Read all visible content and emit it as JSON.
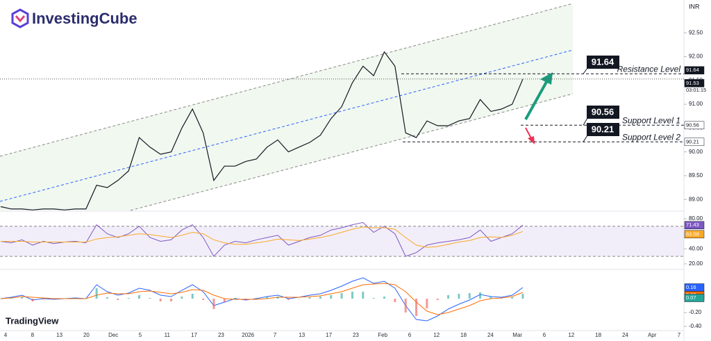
{
  "brand": "InvestingCube",
  "watermark": "TradingView",
  "chart_data": [
    {
      "type": "line",
      "currency": "INR",
      "color": "#131722",
      "countdown": "03:01:15",
      "values": [
        88.85,
        88.8,
        88.8,
        88.78,
        88.8,
        88.8,
        88.78,
        88.8,
        88.8,
        89.3,
        89.25,
        89.4,
        89.6,
        90.3,
        90.1,
        89.95,
        90.0,
        90.5,
        90.9,
        90.4,
        89.4,
        89.7,
        89.7,
        89.8,
        89.85,
        90.1,
        90.25,
        90.0,
        90.1,
        90.2,
        90.35,
        90.7,
        90.95,
        91.45,
        91.8,
        91.6,
        92.1,
        91.8,
        90.4,
        90.3,
        90.65,
        90.55,
        90.55,
        90.65,
        90.7,
        91.1,
        90.85,
        90.9,
        91.0,
        91.53
      ],
      "levels": [
        {
          "value": 91.64,
          "text": "Resistance Level"
        },
        {
          "value": 90.56,
          "text": "Support Level 1"
        },
        {
          "value": 90.21,
          "text": "Support Level 2"
        }
      ],
      "ylim": [
        88.77,
        93.19
      ],
      "yticks": [
        {
          "value": 89,
          "label": "89.00"
        },
        {
          "value": 89.5,
          "label": "89.50"
        },
        {
          "value": 90,
          "label": "90.00"
        },
        {
          "value": 90.5,
          "label": "90.50"
        },
        {
          "value": 91,
          "label": "91.00"
        },
        {
          "value": 91.5,
          "label": "91.50"
        },
        {
          "value": 92,
          "label": "92.00"
        },
        {
          "value": 92.5,
          "label": "92.50"
        }
      ],
      "x_labels": [
        "4",
        "8",
        "13",
        "20",
        "Dec",
        "5",
        "11",
        "17",
        "23",
        "2026",
        "7",
        "13",
        "17",
        "23",
        "Feb",
        "6",
        "12",
        "18",
        "24",
        "Mar",
        "6",
        "12",
        "18",
        "24",
        "Apr",
        "7"
      ]
    },
    {
      "type": "line",
      "band": [
        30,
        70
      ],
      "series": [
        {
          "color": "#7e57c2",
          "values": [
            50,
            48,
            52,
            45,
            50,
            47,
            49,
            50,
            48,
            72,
            60,
            55,
            60,
            70,
            55,
            50,
            52,
            65,
            72,
            55,
            30,
            45,
            50,
            48,
            52,
            55,
            58,
            45,
            50,
            55,
            58,
            65,
            68,
            72,
            75,
            62,
            70,
            60,
            30,
            35,
            45,
            48,
            50,
            52,
            55,
            65,
            50,
            55,
            60,
            71.43
          ]
        },
        {
          "color": "#f9a825",
          "values": [
            50,
            50,
            50,
            49,
            49,
            49,
            49,
            49,
            49,
            53,
            55,
            56,
            58,
            60,
            59,
            57,
            55,
            58,
            62,
            60,
            52,
            48,
            46,
            46,
            48,
            50,
            53,
            52,
            51,
            53,
            55,
            58,
            62,
            66,
            69,
            68,
            68,
            66,
            55,
            45,
            42,
            43,
            46,
            49,
            51,
            55,
            56,
            55,
            58,
            63.08
          ]
        }
      ],
      "ylim": [
        13.5,
        89.2
      ],
      "yticks": [
        {
          "value": 20,
          "label": "20.00"
        },
        {
          "value": 40,
          "label": "40.00"
        },
        {
          "value": 80,
          "label": "80.00"
        }
      ]
    },
    {
      "type": "line",
      "series": [
        {
          "color": "#2962ff",
          "values": [
            0,
            0.02,
            0.05,
            -0.02,
            0,
            -0.01,
            0,
            0.01,
            0,
            0.2,
            0.1,
            0.05,
            0.08,
            0.15,
            0.12,
            0.05,
            0.03,
            0.12,
            0.2,
            0.1,
            -0.1,
            -0.05,
            0,
            -0.02,
            0,
            0.03,
            0.05,
            0,
            0.02,
            0.05,
            0.07,
            0.12,
            0.18,
            0.25,
            0.3,
            0.22,
            0.25,
            0.15,
            -0.1,
            -0.3,
            -0.32,
            -0.25,
            -0.15,
            -0.08,
            -0.02,
            0.06,
            0.03,
            0.02,
            0.05,
            0.16
          ]
        },
        {
          "color": "#ff6d00",
          "values": [
            0,
            0.01,
            0.03,
            0.02,
            0.01,
            0,
            0,
            0,
            0,
            0.05,
            0.08,
            0.07,
            0.07,
            0.1,
            0.11,
            0.09,
            0.07,
            0.09,
            0.13,
            0.12,
            0.05,
            0,
            -0.01,
            -0.01,
            -0.01,
            0,
            0.02,
            0.02,
            0.02,
            0.03,
            0.04,
            0.07,
            0.1,
            0.15,
            0.2,
            0.21,
            0.22,
            0.2,
            0.1,
            -0.05,
            -0.18,
            -0.23,
            -0.2,
            -0.15,
            -0.1,
            -0.03,
            0,
            0.01,
            0.03,
            0.09
          ]
        },
        {
          "color": "#26a69a",
          "negative_color": "#ef5350",
          "kind": "bar",
          "values": [
            0,
            0.01,
            0.02,
            -0.04,
            -0.01,
            -0.01,
            0,
            0.01,
            0,
            0.15,
            0.02,
            -0.02,
            0.01,
            0.05,
            0.01,
            -0.04,
            -0.04,
            0.03,
            0.07,
            -0.02,
            -0.15,
            -0.05,
            0.01,
            -0.01,
            0.01,
            0.03,
            0.03,
            -0.02,
            0,
            0.02,
            0.03,
            0.05,
            0.08,
            0.1,
            0.1,
            0.01,
            0.03,
            -0.05,
            -0.2,
            -0.25,
            -0.14,
            -0.02,
            0.05,
            0.07,
            0.08,
            0.09,
            0.03,
            0.01,
            0.02,
            0.07
          ]
        }
      ],
      "ylim": [
        -0.46,
        0.4
      ],
      "yticks": [
        {
          "value": -0.4,
          "label": "-0.40"
        },
        {
          "value": -0.2,
          "label": "-0.20"
        },
        {
          "value": 0,
          "label": "0.00"
        }
      ]
    }
  ]
}
